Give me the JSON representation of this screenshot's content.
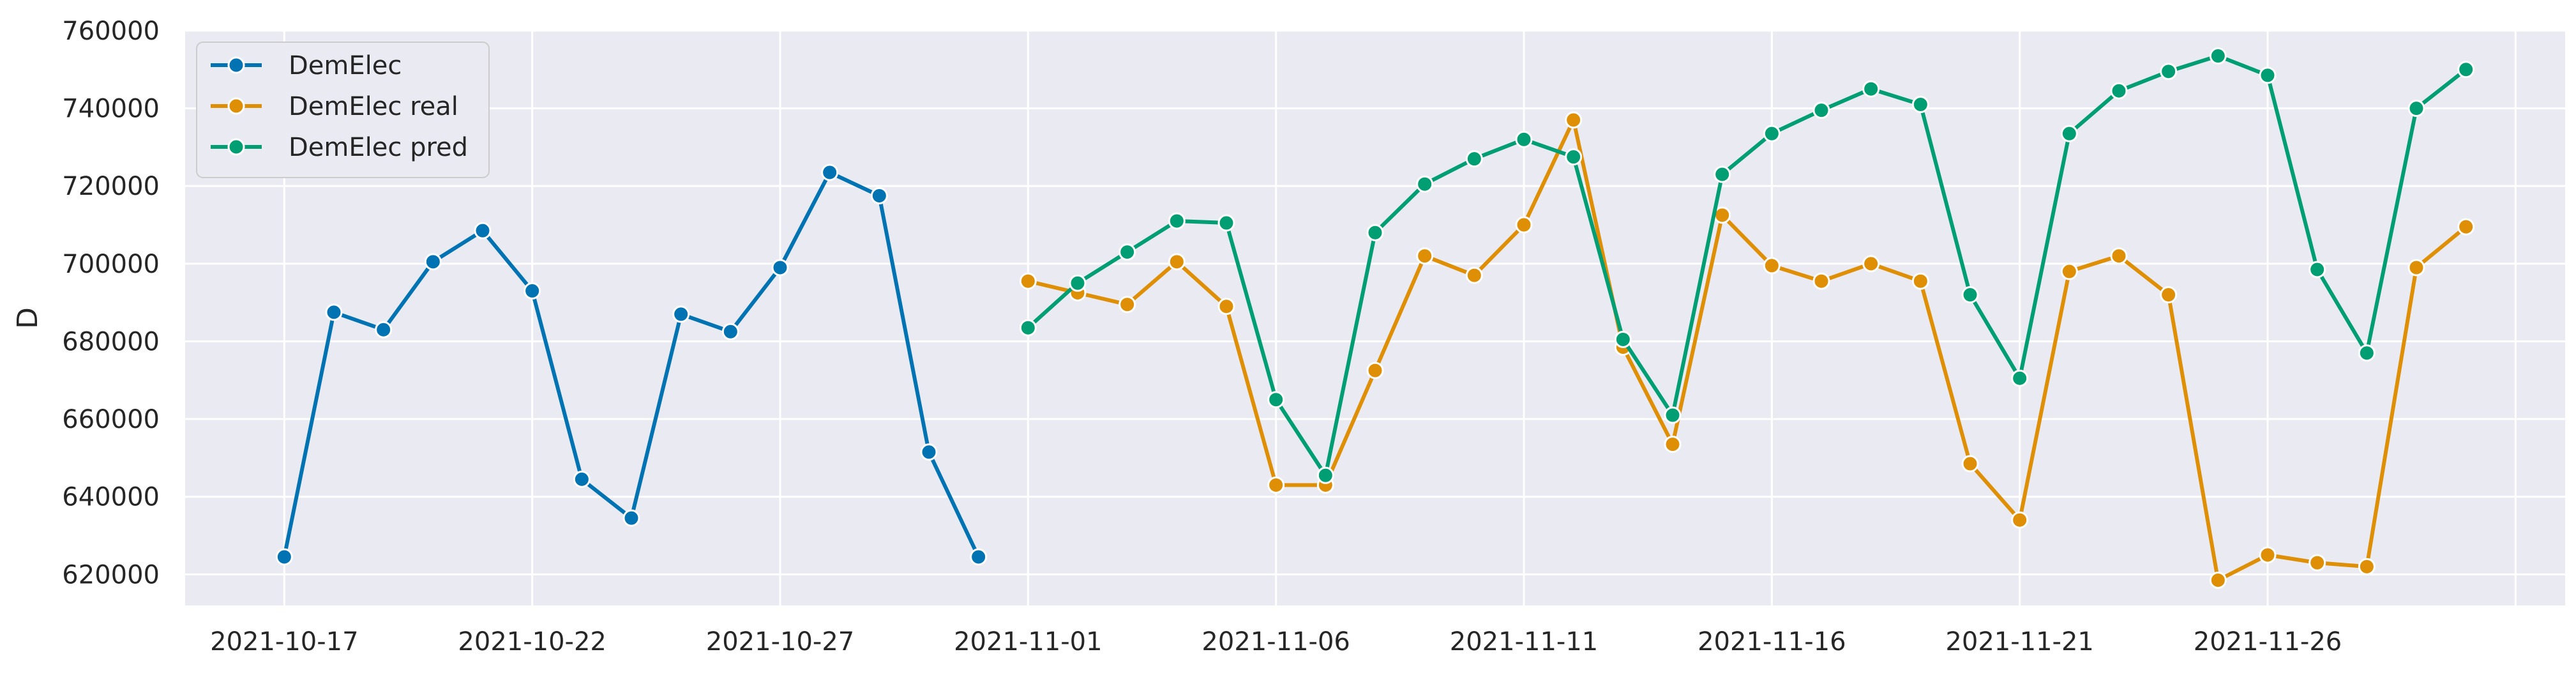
{
  "chart_data": {
    "type": "line",
    "title": "",
    "xlabel": "",
    "ylabel": "D",
    "ylim": [
      612000,
      760000
    ],
    "yticks": [
      620000,
      640000,
      660000,
      680000,
      700000,
      720000,
      740000,
      760000
    ],
    "ytick_labels": [
      "620000",
      "640000",
      "660000",
      "680000",
      "700000",
      "720000",
      "740000",
      "760000"
    ],
    "xlim": [
      "2021-10-15",
      "2021-12-02"
    ],
    "xticks": [
      "2021-10-17",
      "2021-10-22",
      "2021-10-27",
      "2021-11-01",
      "2021-11-06",
      "2021-11-11",
      "2021-11-16",
      "2021-11-21",
      "2021-11-26",
      "2021-12-01"
    ],
    "xtick_labels": [
      "2021-10-17",
      "2021-10-22",
      "2021-10-27",
      "2021-11-01",
      "2021-11-06",
      "2021-11-11",
      "2021-11-16",
      "2021-11-21",
      "2021-11-26",
      ""
    ],
    "grid": true,
    "legend_position": "top-left",
    "series": [
      {
        "name": "DemElec",
        "color": "#0173b2",
        "x": [
          "2021-10-17",
          "2021-10-18",
          "2021-10-19",
          "2021-10-20",
          "2021-10-21",
          "2021-10-22",
          "2021-10-23",
          "2021-10-24",
          "2021-10-25",
          "2021-10-26",
          "2021-10-27",
          "2021-10-28",
          "2021-10-29",
          "2021-10-30",
          "2021-10-31"
        ],
        "values": [
          624500,
          687500,
          683000,
          700500,
          708500,
          693000,
          644500,
          634500,
          687000,
          682500,
          699000,
          723500,
          717500,
          651500,
          624500
        ]
      },
      {
        "name": "DemElec real",
        "color": "#de8f05",
        "x": [
          "2021-11-01",
          "2021-11-02",
          "2021-11-03",
          "2021-11-04",
          "2021-11-05",
          "2021-11-06",
          "2021-11-07",
          "2021-11-08",
          "2021-11-09",
          "2021-11-10",
          "2021-11-11",
          "2021-11-12",
          "2021-11-13",
          "2021-11-14",
          "2021-11-15",
          "2021-11-16",
          "2021-11-17",
          "2021-11-18",
          "2021-11-19",
          "2021-11-20",
          "2021-11-21",
          "2021-11-22",
          "2021-11-23",
          "2021-11-24",
          "2021-11-25",
          "2021-11-26",
          "2021-11-27",
          "2021-11-28",
          "2021-11-29",
          "2021-11-30"
        ],
        "values": [
          695500,
          692500,
          689500,
          700500,
          689000,
          643000,
          643000,
          672500,
          702000,
          697000,
          710000,
          737000,
          678500,
          653500,
          712500,
          699500,
          695500,
          700000,
          695500,
          648500,
          634000,
          698000,
          702000,
          692000,
          618500,
          625000,
          623000,
          622000,
          699000,
          709500
        ]
      },
      {
        "name": "DemElec pred",
        "color": "#029e73",
        "x": [
          "2021-11-01",
          "2021-11-02",
          "2021-11-03",
          "2021-11-04",
          "2021-11-05",
          "2021-11-06",
          "2021-11-07",
          "2021-11-08",
          "2021-11-09",
          "2021-11-10",
          "2021-11-11",
          "2021-11-12",
          "2021-11-13",
          "2021-11-14",
          "2021-11-15",
          "2021-11-16",
          "2021-11-17",
          "2021-11-18",
          "2021-11-19",
          "2021-11-20",
          "2021-11-21",
          "2021-11-22",
          "2021-11-23",
          "2021-11-24",
          "2021-11-25",
          "2021-11-26",
          "2021-11-27",
          "2021-11-28",
          "2021-11-29",
          "2021-11-30"
        ],
        "values": [
          683500,
          695000,
          703000,
          711000,
          710500,
          665000,
          645500,
          708000,
          720500,
          727000,
          732000,
          727500,
          680500,
          661000,
          723000,
          733500,
          739500,
          745000,
          741000,
          692000,
          670500,
          733500,
          744500,
          749500,
          753500,
          748500,
          698500,
          677000,
          740000,
          750000
        ]
      }
    ]
  }
}
